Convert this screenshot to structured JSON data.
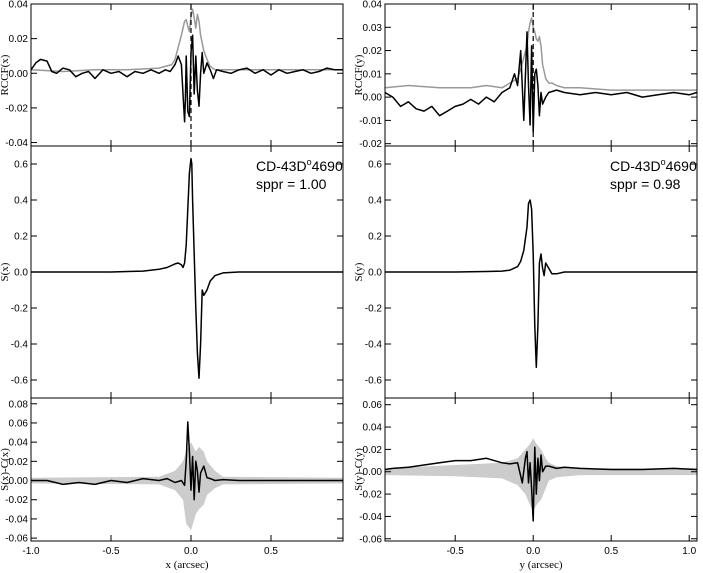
{
  "chart_data": [
    {
      "type": "line",
      "panel": "left-top",
      "ylabel": "RCCF(x)",
      "xlim": [
        -1.0,
        0.95
      ],
      "ylim": [
        -0.042,
        0.04
      ],
      "yticks": [
        -0.04,
        -0.02,
        0.0,
        0.02,
        0.04
      ],
      "ytick_labels": [
        "-0.04",
        "-0.02",
        "0.00",
        "0.02",
        "0.04"
      ],
      "xticks": [
        -1.0,
        -0.5,
        0.0,
        0.5
      ],
      "vline": 0.0,
      "series": [
        {
          "color": "#999999",
          "x": [
            -1.0,
            -0.8,
            -0.6,
            -0.4,
            -0.2,
            -0.12,
            -0.1,
            -0.08,
            -0.06,
            -0.05,
            -0.04,
            -0.03,
            -0.02,
            -0.01,
            0.0,
            0.01,
            0.02,
            0.03,
            0.04,
            0.05,
            0.06,
            0.08,
            0.1,
            0.12,
            0.15,
            0.2,
            0.3,
            0.5,
            0.7,
            0.95
          ],
          "y": [
            0.002,
            0.001,
            0.002,
            0.002,
            0.003,
            0.005,
            0.008,
            0.015,
            0.022,
            0.026,
            0.03,
            0.031,
            0.027,
            0.024,
            0.033,
            0.037,
            0.032,
            0.026,
            0.034,
            0.03,
            0.022,
            0.013,
            0.008,
            0.004,
            0.002,
            0.002,
            0.002,
            0.002,
            0.002,
            0.002
          ]
        },
        {
          "color": "#000000",
          "x": [
            -1.0,
            -0.97,
            -0.94,
            -0.9,
            -0.87,
            -0.84,
            -0.8,
            -0.76,
            -0.72,
            -0.68,
            -0.64,
            -0.6,
            -0.55,
            -0.5,
            -0.45,
            -0.4,
            -0.35,
            -0.3,
            -0.25,
            -0.2,
            -0.16,
            -0.13,
            -0.1,
            -0.08,
            -0.06,
            -0.05,
            -0.04,
            -0.035,
            -0.03,
            -0.02,
            -0.01,
            0.0,
            0.01,
            0.02,
            0.03,
            0.04,
            0.05,
            0.06,
            0.07,
            0.08,
            0.1,
            0.12,
            0.14,
            0.16,
            0.2,
            0.25,
            0.3,
            0.35,
            0.4,
            0.45,
            0.5,
            0.55,
            0.6,
            0.65,
            0.7,
            0.75,
            0.8,
            0.85,
            0.9,
            0.95
          ],
          "y": [
            0.002,
            0.006,
            0.008,
            0.007,
            0.001,
            0.0,
            0.003,
            0.002,
            -0.002,
            0.0,
            0.001,
            -0.003,
            0.002,
            0.0,
            0.001,
            -0.002,
            0.001,
            0.0,
            0.002,
            0.0,
            0.002,
            0.001,
            0.005,
            0.01,
            0.005,
            -0.012,
            -0.028,
            -0.015,
            0.01,
            -0.022,
            -0.025,
            0.012,
            0.022,
            -0.012,
            0.01,
            -0.01,
            -0.019,
            0.0,
            0.012,
            0.0,
            0.006,
            0.002,
            -0.003,
            0.002,
            0.001,
            0.0,
            0.002,
            0.003,
            0.0,
            0.002,
            -0.001,
            0.002,
            0.0,
            0.001,
            0.002,
            0.0,
            0.001,
            0.003,
            0.002,
            0.002
          ]
        }
      ]
    },
    {
      "type": "line",
      "panel": "left-middle",
      "ylabel": "S(x)",
      "xlim": [
        -1.0,
        0.95
      ],
      "ylim": [
        -0.7,
        0.7
      ],
      "yticks": [
        -0.6,
        -0.4,
        -0.2,
        0.0,
        0.2,
        0.4,
        0.6
      ],
      "ytick_labels": [
        "-0.6",
        "-0.4",
        "-0.2",
        "0.0",
        "0.2",
        "0.4",
        "0.6"
      ],
      "xticks": [
        -1.0,
        -0.5,
        0.0,
        0.5
      ],
      "annotation": {
        "star": "CD-43D",
        "sup": "o",
        "star_rest": "4690",
        "sppr": "sppr = 1.00"
      },
      "series": [
        {
          "color": "#000000",
          "x": [
            -1.0,
            -0.5,
            -0.3,
            -0.2,
            -0.15,
            -0.1,
            -0.08,
            -0.06,
            -0.05,
            -0.04,
            -0.03,
            -0.02,
            -0.01,
            0.0,
            0.005,
            0.01,
            0.02,
            0.03,
            0.04,
            0.05,
            0.06,
            0.07,
            0.08,
            0.1,
            0.12,
            0.15,
            0.2,
            0.3,
            0.5,
            0.95
          ],
          "y": [
            0.0,
            0.0,
            0.005,
            0.015,
            0.025,
            0.045,
            0.05,
            0.04,
            0.025,
            0.05,
            0.15,
            0.35,
            0.55,
            0.63,
            0.6,
            0.4,
            0.1,
            -0.2,
            -0.45,
            -0.59,
            -0.4,
            -0.1,
            -0.13,
            -0.1,
            -0.05,
            -0.02,
            -0.005,
            0.0,
            0.0,
            0.0
          ]
        }
      ]
    },
    {
      "type": "line",
      "panel": "left-bottom",
      "ylabel": "S(x)-C(x)",
      "xlabel": "x (arcsec)",
      "xlim": [
        -1.0,
        0.95
      ],
      "ylim": [
        -0.063,
        0.086
      ],
      "yticks": [
        -0.06,
        -0.04,
        -0.02,
        0.0,
        0.02,
        0.04,
        0.06,
        0.08
      ],
      "ytick_labels": [
        "-0.06",
        "-0.04",
        "-0.02",
        "0.00",
        "0.02",
        "0.04",
        "0.06",
        "0.08"
      ],
      "xticks": [
        -1.0,
        -0.5,
        0.0,
        0.5
      ],
      "xtick_labels": [
        "-1.0",
        "-0.5",
        "0.0",
        "0.5"
      ],
      "band": {
        "color": "#cccccc",
        "x": [
          -1.0,
          -0.2,
          -0.1,
          -0.05,
          -0.03,
          0.0,
          0.03,
          0.05,
          0.08,
          0.1,
          0.15,
          0.2,
          0.95
        ],
        "upper": [
          0.003,
          0.004,
          0.01,
          0.02,
          0.03,
          0.04,
          0.03,
          0.035,
          0.03,
          0.02,
          0.01,
          0.004,
          0.003
        ],
        "lower": [
          -0.003,
          -0.004,
          -0.01,
          -0.02,
          -0.045,
          -0.052,
          -0.035,
          -0.03,
          -0.025,
          -0.015,
          -0.008,
          -0.004,
          -0.003
        ]
      },
      "series": [
        {
          "color": "#000000",
          "x": [
            -1.0,
            -0.9,
            -0.8,
            -0.7,
            -0.6,
            -0.5,
            -0.4,
            -0.3,
            -0.2,
            -0.15,
            -0.1,
            -0.06,
            -0.04,
            -0.03,
            -0.02,
            -0.01,
            0.0,
            0.01,
            0.02,
            0.03,
            0.04,
            0.05,
            0.06,
            0.08,
            0.1,
            0.12,
            0.15,
            0.2,
            0.3,
            0.5,
            0.7,
            0.95
          ],
          "y": [
            0.0,
            0.0,
            -0.004,
            -0.002,
            -0.004,
            0.0,
            -0.002,
            0.002,
            0.0,
            0.002,
            -0.002,
            0.0,
            -0.005,
            0.02,
            0.061,
            0.03,
            -0.01,
            0.025,
            -0.02,
            0.02,
            0.01,
            -0.012,
            0.008,
            0.015,
            0.003,
            0.002,
            0.0,
            0.001,
            0.0,
            0.0,
            0.0,
            0.0
          ]
        }
      ]
    },
    {
      "type": "line",
      "panel": "right-top",
      "ylabel": "RCCF(y)",
      "xlim": [
        -0.95,
        1.05
      ],
      "ylim": [
        -0.021,
        0.04
      ],
      "yticks": [
        -0.02,
        -0.01,
        0.0,
        0.01,
        0.02,
        0.03,
        0.04
      ],
      "ytick_labels": [
        "-0.02",
        "-0.01",
        "0.00",
        "0.01",
        "0.02",
        "0.03",
        "0.04"
      ],
      "xticks": [
        -0.5,
        0.0,
        0.5,
        1.0
      ],
      "vline": 0.0,
      "series": [
        {
          "color": "#999999",
          "x": [
            -0.95,
            -0.8,
            -0.6,
            -0.4,
            -0.3,
            -0.2,
            -0.15,
            -0.1,
            -0.08,
            -0.06,
            -0.04,
            -0.03,
            -0.02,
            -0.01,
            0.0,
            0.01,
            0.02,
            0.03,
            0.04,
            0.05,
            0.06,
            0.08,
            0.1,
            0.12,
            0.15,
            0.2,
            0.3,
            0.5,
            0.7,
            1.05
          ],
          "y": [
            0.004,
            0.005,
            0.004,
            0.004,
            0.005,
            0.004,
            0.006,
            0.008,
            0.012,
            0.017,
            0.022,
            0.028,
            0.032,
            0.034,
            0.03,
            0.028,
            0.025,
            0.024,
            0.026,
            0.022,
            0.014,
            0.008,
            0.006,
            0.006,
            0.005,
            0.004,
            0.004,
            0.003,
            0.003,
            0.003
          ]
        },
        {
          "color": "#000000",
          "x": [
            -0.95,
            -0.9,
            -0.85,
            -0.8,
            -0.75,
            -0.7,
            -0.65,
            -0.6,
            -0.55,
            -0.5,
            -0.45,
            -0.4,
            -0.35,
            -0.3,
            -0.25,
            -0.2,
            -0.15,
            -0.12,
            -0.1,
            -0.08,
            -0.06,
            -0.04,
            -0.03,
            -0.02,
            -0.01,
            0.0,
            0.01,
            0.02,
            0.03,
            0.04,
            0.05,
            0.06,
            0.08,
            0.1,
            0.15,
            0.2,
            0.3,
            0.4,
            0.5,
            0.6,
            0.7,
            0.8,
            0.9,
            1.0,
            1.05
          ],
          "y": [
            0.002,
            0.0,
            -0.004,
            -0.002,
            -0.005,
            -0.006,
            -0.004,
            -0.008,
            -0.006,
            -0.004,
            -0.003,
            -0.001,
            -0.003,
            0.0,
            -0.002,
            0.002,
            0.004,
            0.01,
            0.005,
            0.02,
            -0.01,
            0.028,
            0.005,
            -0.012,
            0.022,
            -0.015,
            0.01,
            0.012,
            0.005,
            -0.008,
            0.002,
            -0.003,
            0.0,
            0.002,
            0.003,
            0.002,
            0.001,
            0.002,
            0.001,
            0.002,
            0.0,
            0.001,
            0.002,
            0.001,
            0.002
          ]
        }
      ]
    },
    {
      "type": "line",
      "panel": "right-middle",
      "ylabel": "S(y)",
      "xlim": [
        -0.95,
        1.05
      ],
      "ylim": [
        -0.7,
        0.7
      ],
      "yticks": [
        -0.6,
        -0.4,
        -0.2,
        0.0,
        0.2,
        0.4,
        0.6
      ],
      "ytick_labels": [
        "-0.6",
        "-0.4",
        "-0.2",
        "0.0",
        "0.2",
        "0.4",
        "0.6"
      ],
      "xticks": [
        -0.5,
        0.0,
        0.5,
        1.0
      ],
      "annotation": {
        "star": "CD-43D",
        "sup": "o",
        "star_rest": "4690",
        "sppr": "sppr = 0.98"
      },
      "series": [
        {
          "color": "#000000",
          "x": [
            -0.95,
            -0.5,
            -0.3,
            -0.2,
            -0.15,
            -0.1,
            -0.08,
            -0.06,
            -0.04,
            -0.03,
            -0.02,
            -0.01,
            0.0,
            0.01,
            0.02,
            0.03,
            0.04,
            0.05,
            0.06,
            0.07,
            0.08,
            0.1,
            0.12,
            0.15,
            0.2,
            0.3,
            0.5,
            1.05
          ],
          "y": [
            0.0,
            0.0,
            0.003,
            0.005,
            0.01,
            0.03,
            0.06,
            0.12,
            0.25,
            0.38,
            0.4,
            0.35,
            0.1,
            -0.3,
            -0.53,
            -0.3,
            0.05,
            0.1,
            0.02,
            -0.02,
            0.05,
            0.02,
            -0.01,
            -0.01,
            0.0,
            0.0,
            0.0,
            0.0
          ]
        }
      ]
    },
    {
      "type": "line",
      "panel": "right-bottom",
      "ylabel": "S(y)-C(y)",
      "xlabel": "y (arcsec)",
      "xlim": [
        -0.95,
        1.05
      ],
      "ylim": [
        -0.062,
        0.066
      ],
      "yticks": [
        -0.06,
        -0.04,
        -0.02,
        0.0,
        0.02,
        0.04,
        0.06
      ],
      "ytick_labels": [
        "-0.06",
        "-0.04",
        "-0.02",
        "0.00",
        "0.02",
        "0.04",
        "0.06"
      ],
      "xticks": [
        -0.5,
        0.0,
        0.5,
        1.0
      ],
      "xtick_labels": [
        "-0.5",
        "0.0",
        "0.5",
        "1.0"
      ],
      "band": {
        "color": "#cccccc",
        "x": [
          -0.95,
          -0.5,
          -0.2,
          -0.1,
          -0.05,
          -0.02,
          0.0,
          0.02,
          0.05,
          0.08,
          0.1,
          0.15,
          0.3,
          0.6,
          1.05
        ],
        "upper": [
          0.003,
          0.006,
          0.008,
          0.012,
          0.02,
          0.025,
          0.03,
          0.025,
          0.02,
          0.012,
          0.008,
          0.005,
          0.003,
          0.003,
          0.003
        ],
        "lower": [
          -0.003,
          -0.004,
          -0.006,
          -0.012,
          -0.02,
          -0.03,
          -0.035,
          -0.03,
          -0.025,
          -0.015,
          -0.008,
          -0.005,
          -0.003,
          -0.003,
          -0.003
        ]
      },
      "series": [
        {
          "color": "#000000",
          "x": [
            -0.95,
            -0.9,
            -0.8,
            -0.7,
            -0.6,
            -0.5,
            -0.4,
            -0.3,
            -0.2,
            -0.15,
            -0.1,
            -0.07,
            -0.05,
            -0.04,
            -0.03,
            -0.02,
            -0.01,
            0.0,
            0.01,
            0.02,
            0.03,
            0.04,
            0.05,
            0.06,
            0.08,
            0.1,
            0.15,
            0.2,
            0.3,
            0.5,
            0.7,
            0.9,
            1.05
          ],
          "y": [
            0.002,
            0.003,
            0.004,
            0.006,
            0.008,
            0.01,
            0.01,
            0.012,
            0.008,
            0.007,
            0.008,
            -0.01,
            0.012,
            0.018,
            -0.01,
            0.008,
            -0.015,
            -0.044,
            0.022,
            -0.02,
            0.012,
            -0.008,
            0.015,
            0.0,
            0.005,
            0.005,
            0.003,
            0.004,
            0.003,
            0.002,
            0.002,
            0.003,
            0.002
          ]
        }
      ]
    }
  ]
}
